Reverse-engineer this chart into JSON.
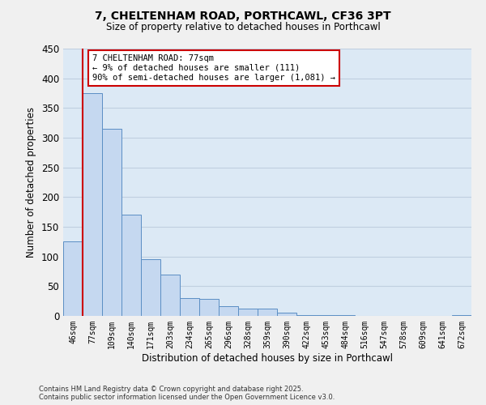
{
  "title_line1": "7, CHELTENHAM ROAD, PORTHCAWL, CF36 3PT",
  "title_line2": "Size of property relative to detached houses in Porthcawl",
  "xlabel": "Distribution of detached houses by size in Porthcawl",
  "ylabel": "Number of detached properties",
  "categories": [
    "46sqm",
    "77sqm",
    "109sqm",
    "140sqm",
    "171sqm",
    "203sqm",
    "234sqm",
    "265sqm",
    "296sqm",
    "328sqm",
    "359sqm",
    "390sqm",
    "422sqm",
    "453sqm",
    "484sqm",
    "516sqm",
    "547sqm",
    "578sqm",
    "609sqm",
    "641sqm",
    "672sqm"
  ],
  "values": [
    125,
    375,
    315,
    170,
    95,
    70,
    30,
    28,
    17,
    12,
    12,
    5,
    2,
    2,
    1,
    0,
    0,
    0,
    0,
    0,
    2
  ],
  "bar_color": "#c5d8f0",
  "bar_edge_color": "#5b8ec4",
  "background_color": "#dce9f5",
  "grid_color": "#c0cfe0",
  "annotation_text": "7 CHELTENHAM ROAD: 77sqm\n← 9% of detached houses are smaller (111)\n90% of semi-detached houses are larger (1,081) →",
  "annotation_box_facecolor": "#ffffff",
  "annotation_box_edge_color": "#cc0000",
  "red_line_x": 1,
  "ylim": [
    0,
    450
  ],
  "yticks": [
    0,
    50,
    100,
    150,
    200,
    250,
    300,
    350,
    400,
    450
  ],
  "fig_bg_color": "#f0f0f0",
  "footer_line1": "Contains HM Land Registry data © Crown copyright and database right 2025.",
  "footer_line2": "Contains public sector information licensed under the Open Government Licence v3.0."
}
